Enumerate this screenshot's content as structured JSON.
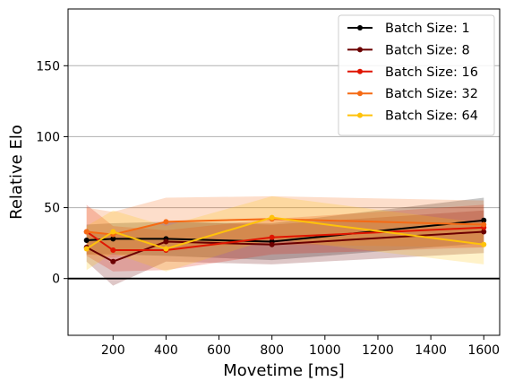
{
  "chart_data": {
    "type": "line",
    "xlabel": "Movetime [ms]",
    "ylabel": "Relative Elo",
    "xlim": [
      30,
      1660
    ],
    "ylim": [
      -40,
      190
    ],
    "xticks": [
      200,
      400,
      600,
      800,
      1000,
      1200,
      1400,
      1600
    ],
    "yticks": [
      0,
      50,
      100,
      150
    ],
    "grid": "horizontal",
    "zero_line": true,
    "legend_position": "top-right",
    "x": [
      100,
      200,
      400,
      800,
      1600
    ],
    "series": [
      {
        "name": "Batch Size: 1",
        "color": "#000000",
        "values": [
          27,
          28,
          28,
          26,
          41
        ],
        "lower": [
          17,
          17,
          16,
          13,
          25
        ],
        "upper": [
          38,
          39,
          40,
          39,
          57
        ]
      },
      {
        "name": "Batch Size: 8",
        "color": "#6b0000",
        "values": [
          22,
          12,
          26,
          24,
          33
        ],
        "lower": [
          12,
          -5,
          12,
          10,
          18
        ],
        "upper": [
          34,
          30,
          40,
          38,
          48
        ]
      },
      {
        "name": "Batch Size: 16",
        "color": "#e01500",
        "values": [
          33,
          20,
          20,
          29,
          36
        ],
        "lower": [
          16,
          5,
          6,
          17,
          22
        ],
        "upper": [
          52,
          37,
          34,
          42,
          52
        ]
      },
      {
        "name": "Batch Size: 32",
        "color": "#f56a14",
        "values": [
          33,
          31,
          40,
          42,
          38
        ],
        "lower": [
          17,
          15,
          22,
          24,
          22
        ],
        "upper": [
          50,
          47,
          57,
          58,
          55
        ]
      },
      {
        "name": "Batch Size: 64",
        "color": "#ffc20a",
        "values": [
          21,
          33,
          21,
          43,
          24
        ],
        "lower": [
          6,
          18,
          5,
          28,
          10
        ],
        "upper": [
          37,
          48,
          37,
          58,
          39
        ]
      }
    ]
  }
}
